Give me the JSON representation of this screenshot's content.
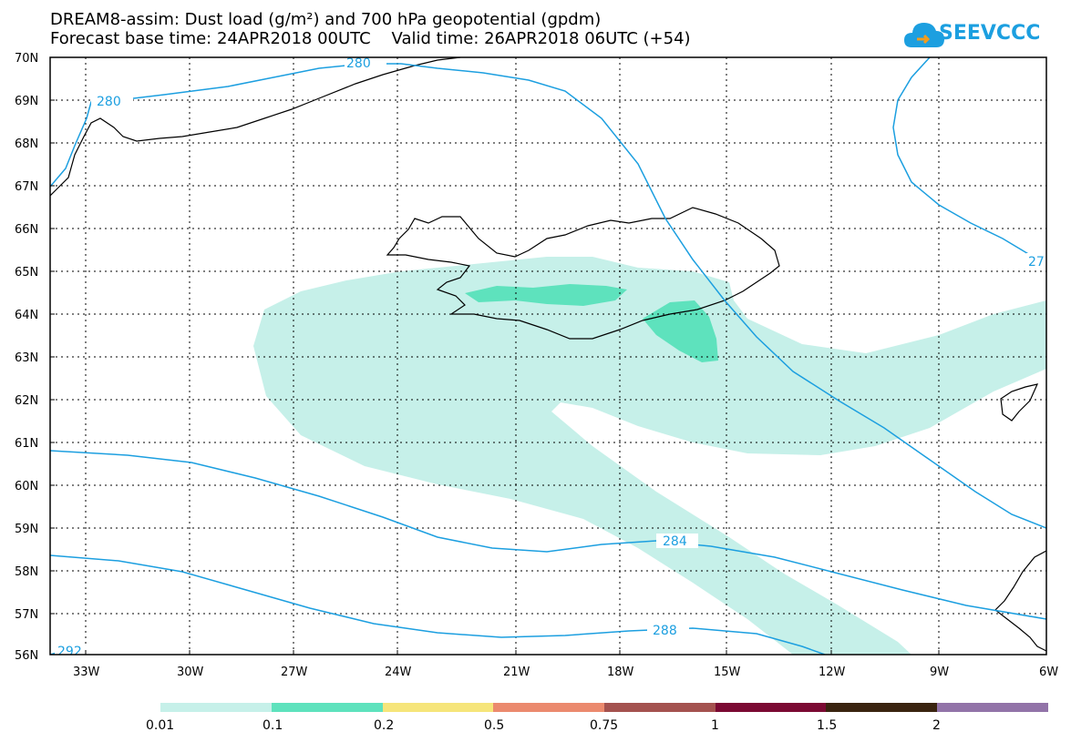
{
  "header": {
    "title_line1": "DREAM8-assim: Dust load (g/m²) and 700 hPa geopotential (gpdm)",
    "title_line2": "Forecast base time: 24APR2018 00UTC    Valid time: 26APR2018 06UTC (+54)",
    "logo_text": "SEEVCCC"
  },
  "map": {
    "lat_labels": [
      "70N",
      "69N",
      "68N",
      "67N",
      "66N",
      "65N",
      "64N",
      "63N",
      "62N",
      "61N",
      "60N",
      "59N",
      "58N",
      "57N",
      "56N"
    ],
    "lon_labels": [
      "33W",
      "30W",
      "27W",
      "24W",
      "21W",
      "18W",
      "15W",
      "12W",
      "9W",
      "6W"
    ],
    "contour_labels": [
      "280",
      "280",
      "284",
      "288",
      "292",
      "27"
    ],
    "colors": {
      "land_outline": "#000000",
      "contour": "#1c9fe0",
      "dust_low": "#c6f0e9",
      "dust_mid": "#5ee2bd"
    }
  },
  "colorbar": {
    "labels": [
      "0.01",
      "0.1",
      "0.2",
      "0.5",
      "0.75",
      "1",
      "1.5",
      "2"
    ],
    "colors": [
      "#c6f0e9",
      "#5ee2bd",
      "#f6e57a",
      "#eb8a6e",
      "#a4524f",
      "#7b0a33",
      "#3a2410",
      "#9273a8"
    ]
  }
}
